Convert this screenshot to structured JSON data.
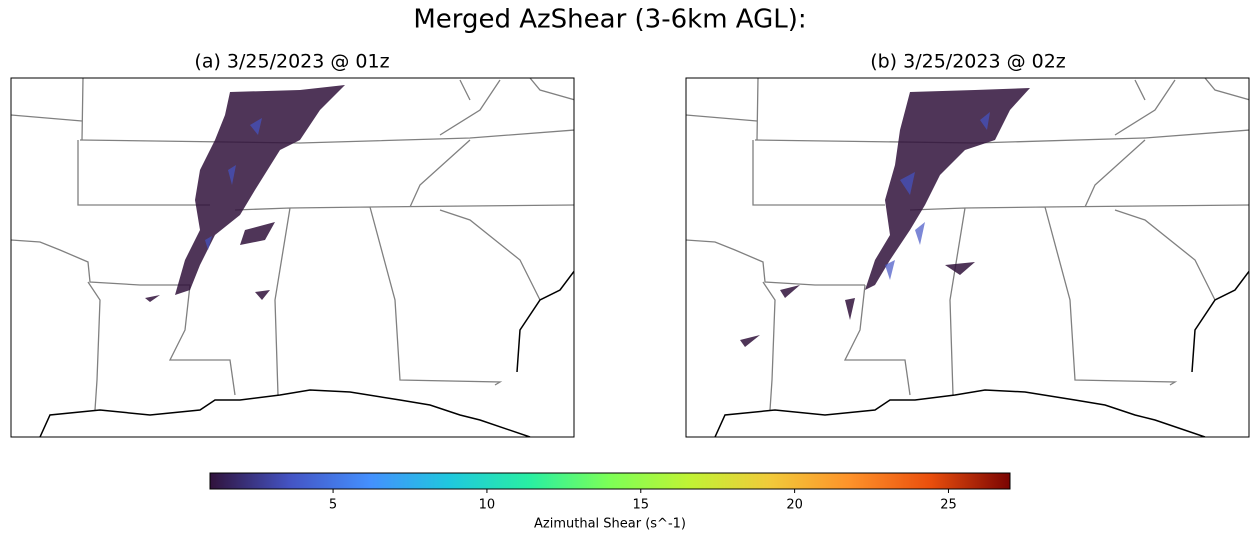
{
  "title": "Merged AzShear (3-6km AGL):",
  "panels": [
    {
      "title": "(a) 3/25/2023 @ 01z"
    },
    {
      "title": "(b) 3/25/2023 @ 02z"
    }
  ],
  "colorbar": {
    "label": "Azimuthal Shear (s^-1)",
    "lim": [
      1,
      27
    ],
    "ticks": [
      5,
      10,
      15,
      20,
      25
    ],
    "colormap": "turbo"
  }
}
